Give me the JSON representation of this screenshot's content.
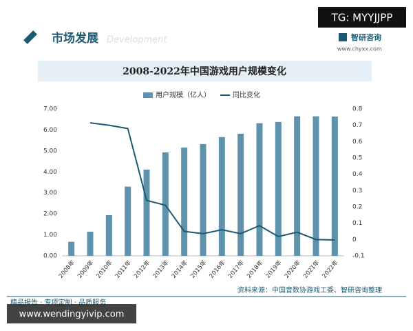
{
  "overlay_top": "TG: MYYJJPP",
  "header": {
    "section": "市场发展",
    "section_en": "Development",
    "brand": "智研咨询",
    "site": "www.chyxx.com"
  },
  "chart_data": {
    "type": "bar",
    "title": "2008-2022年中国游戏用户规模变化",
    "categories": [
      "2008年",
      "2009年",
      "2010年",
      "2011年",
      "2012年",
      "2013年",
      "2014年",
      "2015年",
      "2016年",
      "2017年",
      "2018年",
      "2019年",
      "2020年",
      "2021年",
      "2022年"
    ],
    "series": [
      {
        "name": "用户规模（亿人）",
        "type": "bar",
        "color": "#5f93ad",
        "values": [
          0.67,
          1.15,
          1.94,
          3.3,
          4.11,
          4.93,
          5.16,
          5.33,
          5.66,
          5.82,
          6.32,
          6.38,
          6.65,
          6.65,
          6.64
        ]
      },
      {
        "name": "同比变化",
        "type": "line",
        "axis": "y2",
        "color": "#1b5a72",
        "values": [
          null,
          0.715,
          0.7,
          0.68,
          0.24,
          0.21,
          0.05,
          0.036,
          0.06,
          0.036,
          0.085,
          0.018,
          0.045,
          0.0,
          -0.003
        ]
      }
    ],
    "ylim": [
      0,
      7
    ],
    "yticks": [
      {
        "value": 0,
        "label": "0.00"
      },
      {
        "value": 1,
        "label": "1.00"
      },
      {
        "value": 2,
        "label": "2.00"
      },
      {
        "value": 3,
        "label": "3.00"
      },
      {
        "value": 4,
        "label": "4.00"
      },
      {
        "value": 5,
        "label": "5.00"
      },
      {
        "value": 6,
        "label": "6.00"
      },
      {
        "value": 7,
        "label": "7.00"
      }
    ],
    "y2lim": [
      -0.1,
      0.8
    ],
    "y2ticks": [
      -0.1,
      0,
      0.1,
      0.2,
      0.3,
      0.4,
      0.5,
      0.6,
      0.7,
      0.8
    ],
    "legend": "top",
    "source": "资料来源：中国音数协游戏工委、智研咨询整理"
  },
  "footer": {
    "slogan": "精品报告 · 专项定制 · 品质服务"
  },
  "overlay_bottom": "www.wendingyivip.com"
}
